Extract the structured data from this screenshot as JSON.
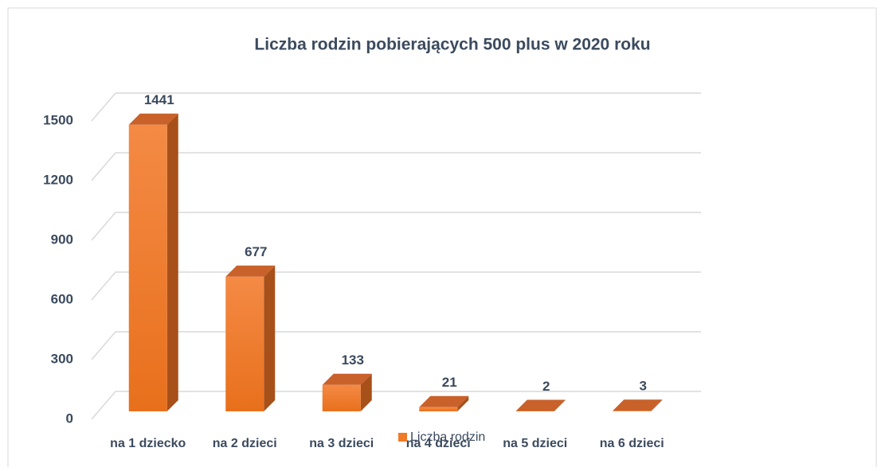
{
  "chart_data": {
    "type": "bar",
    "title": "Liczba rodzin pobierających 500 plus w 2020 roku",
    "categories": [
      "na 1 dziecko",
      "na 2 dzieci",
      "na 3 dzieci",
      "na 4 dzieci",
      "na 5 dzieci",
      "na 6 dzieci"
    ],
    "series": [
      {
        "name": "Liczba rodzin",
        "color": "#f07a26",
        "values": [
          1441,
          677,
          133,
          21,
          2,
          3
        ]
      }
    ],
    "ylim": [
      0,
      1500
    ],
    "yticks": [
      0,
      300,
      600,
      900,
      1200,
      1500
    ],
    "grid": true
  }
}
